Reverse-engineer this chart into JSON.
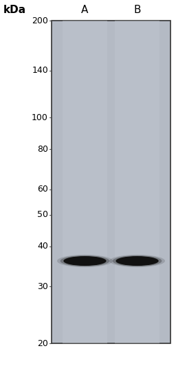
{
  "fig_width": 2.56,
  "fig_height": 5.33,
  "dpi": 100,
  "bg_color": "#ffffff",
  "gel_bg_color": "#b4bac4",
  "gel_stripe_color": "#c0c6d0",
  "lane_labels": [
    "A",
    "B"
  ],
  "kda_label": "kDa",
  "marker_labels": [
    200,
    140,
    100,
    80,
    60,
    50,
    40,
    30,
    20
  ],
  "marker_kda": [
    200,
    140,
    100,
    80,
    60,
    50,
    40,
    30,
    20
  ],
  "band_color": "#111111",
  "gel_border_color": "#333333",
  "gel_border_lw": 1.2,
  "label_fontsize": 9,
  "kda_fontsize": 11,
  "lane_label_fontsize": 11
}
